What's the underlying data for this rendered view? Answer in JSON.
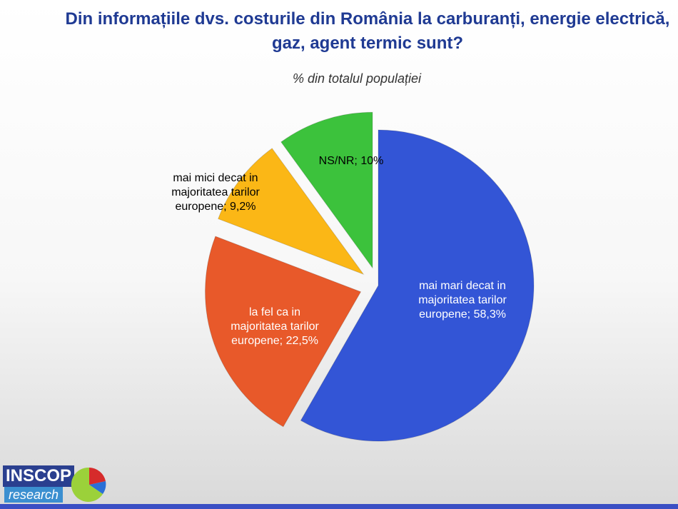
{
  "title": "Din informațiile dvs. costurile din România la carburanți, energie electrică, gaz, agent termic sunt?",
  "subtitle": "% din totalul populației",
  "logo": {
    "name": "INSCOP",
    "tagline": "research"
  },
  "chart_data": {
    "type": "pie",
    "title": "Din informațiile dvs. costurile din România la carburanți, energie electrică, gaz, agent termic sunt?",
    "subtitle": "% din totalul populației",
    "slices": [
      {
        "label": "mai mari decat in majoritatea tarilor europene",
        "value": 58.3,
        "value_label": "58,3%",
        "color": "#3355d6",
        "text_color": "#ffffff",
        "exploded": false
      },
      {
        "label": "la fel ca in majoritatea tarilor europene",
        "value": 22.5,
        "value_label": "22,5%",
        "color": "#e8592a",
        "text_color": "#ffffff",
        "exploded": true
      },
      {
        "label": "mai mici decat in majoritatea tarilor europene",
        "value": 9.2,
        "value_label": "9,2%",
        "color": "#fbb716",
        "text_color": "#000000",
        "exploded": true
      },
      {
        "label": "NS/NR",
        "value": 10,
        "value_label": "10%",
        "color": "#3cc23c",
        "text_color": "#000000",
        "exploded": true
      }
    ]
  }
}
